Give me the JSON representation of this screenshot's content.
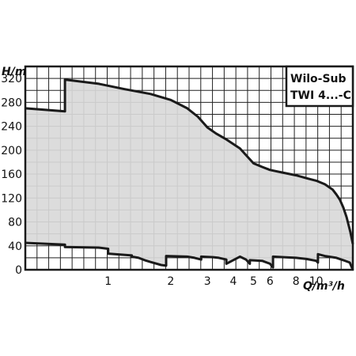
{
  "chart_data": {
    "type": "area",
    "title_lines": [
      "Wilo-Sub",
      "TWI 4...-C"
    ],
    "xlabel": "Q/m³/h",
    "ylabel": "H/m",
    "xscale": "log",
    "xlim": [
      0.4,
      15
    ],
    "ylim": [
      0,
      340
    ],
    "x_ticks": [
      1,
      2,
      3,
      4,
      5,
      6,
      8,
      10
    ],
    "y_ticks": [
      0,
      40,
      80,
      120,
      160,
      200,
      240,
      280,
      320
    ],
    "grid": true,
    "fill_color": "#d9d9d9",
    "line_color": "#1a1a1a",
    "series": [
      {
        "role": "upper_envelope",
        "x": [
          0.4,
          0.62,
          0.62,
          0.9,
          1.2,
          1.6,
          2.0,
          2.4,
          2.7,
          3.0,
          3.3,
          3.7,
          4.3,
          5.0,
          5.5,
          6.0,
          7.0,
          8.0,
          9.0,
          10.0,
          11.0,
          12.0,
          12.5,
          13.0,
          13.5,
          14.0,
          14.6,
          15.0
        ],
        "y": [
          270,
          265,
          318,
          311,
          302,
          294,
          284,
          270,
          256,
          238,
          228,
          218,
          203,
          178,
          172,
          167,
          162,
          158,
          153,
          149,
          143,
          134,
          126,
          117,
          104,
          88,
          63,
          43
        ]
      },
      {
        "role": "lower_envelope",
        "x": [
          0.4,
          0.62,
          0.62,
          0.9,
          1.0,
          1.0,
          1.3,
          1.3,
          1.4,
          1.5,
          1.6,
          1.8,
          1.9,
          1.9,
          2.4,
          2.6,
          2.8,
          2.8,
          3.2,
          3.4,
          3.7,
          3.7,
          4.3,
          4.6,
          4.8,
          4.8,
          5.5,
          6.0,
          6.2,
          6.2,
          7.0,
          8.0,
          9.0,
          10.0,
          10.2,
          10.2,
          11.0,
          11.5,
          12.5,
          13.5,
          14.5,
          15.0
        ],
        "y": [
          45,
          42,
          38,
          37,
          35,
          27,
          24,
          22,
          20,
          16,
          13,
          8,
          7,
          23,
          22,
          20,
          17,
          22,
          21,
          20,
          17,
          10,
          22,
          17,
          10,
          16,
          15,
          10,
          4,
          22,
          21,
          20,
          18,
          15,
          12,
          26,
          23,
          22,
          20,
          16,
          12,
          0
        ]
      }
    ]
  }
}
